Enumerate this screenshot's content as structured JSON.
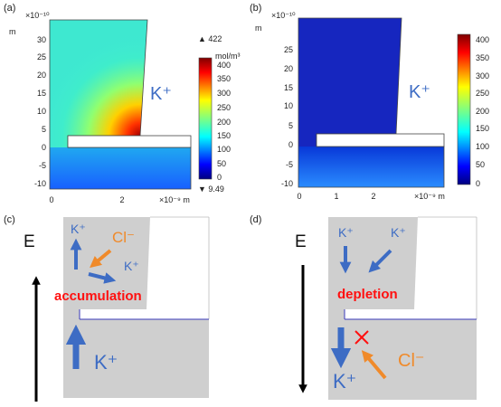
{
  "panels": {
    "a": {
      "label": "(a)",
      "y_axis_scale": "×10⁻¹⁰",
      "y_axis_unit": "m",
      "y_ticks": [
        "30",
        "25",
        "20",
        "15",
        "10",
        "5",
        "0",
        "-5",
        "-10"
      ],
      "x_ticks": [
        "0",
        "2"
      ],
      "x_axis_unit": "×10⁻⁹ m",
      "ion_label": "K⁺",
      "colorbar_unit": "mol/m³",
      "colorbar_ticks": [
        "400",
        "350",
        "300",
        "250",
        "200",
        "150",
        "100",
        "50",
        "0"
      ],
      "max_marker": "▲ 422",
      "min_marker": "▼ 9.49"
    },
    "b": {
      "label": "(b)",
      "y_axis_scale": "×10⁻¹⁰",
      "y_axis_unit": "m",
      "y_ticks": [
        "25",
        "20",
        "15",
        "10",
        "5",
        "0",
        "-5",
        "-10"
      ],
      "x_ticks": [
        "0",
        "1",
        "2"
      ],
      "x_axis_unit": "×10⁻⁹ m",
      "ion_label": "K⁺",
      "colorbar_ticks": [
        "400",
        "350",
        "300",
        "250",
        "200",
        "150",
        "100",
        "50",
        "0"
      ]
    },
    "c": {
      "label": "(c)",
      "field_label": "E",
      "ion_k_1": "K⁺",
      "ion_k_2": "K⁺",
      "ion_k_3": "K⁺",
      "ion_cl": "Cl⁻",
      "caption": "accumulation"
    },
    "d": {
      "label": "(d)",
      "field_label": "E",
      "ion_k_1": "K⁺",
      "ion_k_2": "K⁺",
      "ion_k_3": "K⁺",
      "ion_cl": "Cl⁻",
      "caption": "depletion"
    }
  },
  "colors": {
    "potassium": "#3d6cc4",
    "chloride": "#f08a2a",
    "annotation": "#ff1010",
    "cell_gray": "#cfcfcf"
  }
}
